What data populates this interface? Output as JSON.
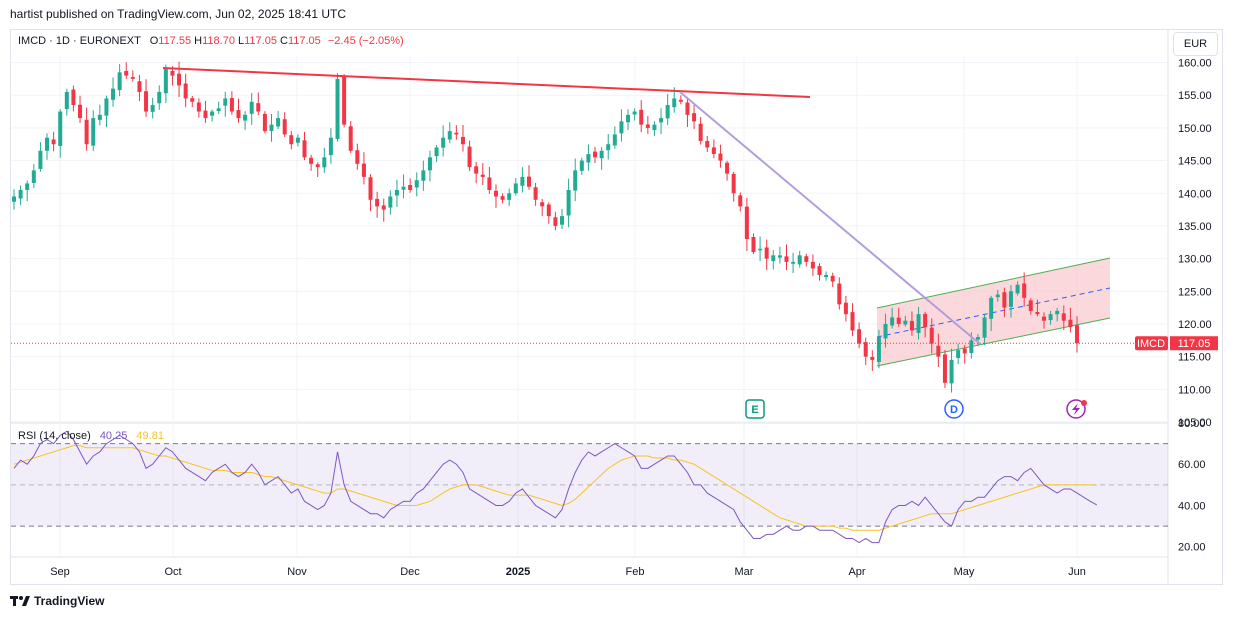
{
  "header": {
    "credit": "hartist published on TradingView.com, Jun 02, 2025 18:41 UTC",
    "currency_button": "EUR"
  },
  "legend": {
    "symbol": "IMCD · 1D · EURONEXT",
    "open_label": "O",
    "open": "117.55",
    "high_label": "H",
    "high": "118.70",
    "low_label": "L",
    "low": "117.05",
    "close_label": "C",
    "close": "117.05",
    "change": "−2.45 (−2.05%)"
  },
  "rsi_legend": {
    "name": "RSI (14, close)",
    "rsi_value": "40.25",
    "ma_value": "49.81"
  },
  "footer": {
    "brand": "TradingView"
  },
  "colors": {
    "up": "#22ab94",
    "down": "#f23645",
    "rsi": "#7e57c2",
    "rsi_ma": "#f7c325",
    "resistance": "#f23645",
    "trendline": "#b39ddb",
    "channel_fill": "#f8c8cc",
    "channel_line": "#4caf50",
    "channel_mid": "#2962ff",
    "grid": "#f0f3fa"
  },
  "chart_data": [
    {
      "type": "candlestick",
      "symbol": "IMCD",
      "x_ticks": [
        "Sep",
        "Oct",
        "Nov",
        "Dec",
        "2025",
        "Feb",
        "Mar",
        "Apr",
        "May",
        "Jun"
      ],
      "y_ticks": [
        "105.00",
        "110.00",
        "115.00",
        "120.00",
        "125.00",
        "130.00",
        "135.00",
        "140.00",
        "145.00",
        "150.00",
        "155.00",
        "160.00"
      ],
      "ylim": [
        105,
        161
      ],
      "price_label": {
        "symbol": "IMCD",
        "value": "117.05"
      },
      "last_price": 117.05,
      "close_series": [
        139.5,
        140.5,
        141.5,
        143.5,
        146.5,
        148.5,
        147.5,
        152.5,
        155.5,
        153.5,
        151.5,
        147.5,
        151.5,
        152,
        154.5,
        156,
        158.5,
        158,
        157.5,
        155.5,
        152.5,
        153.5,
        155.5,
        159,
        158,
        156.5,
        154.5,
        154,
        152.5,
        151.5,
        152.5,
        153,
        154.5,
        152.5,
        151.5,
        152,
        154,
        152.5,
        149.5,
        150.5,
        151.5,
        149,
        147.5,
        148.5,
        145.5,
        144.5,
        144,
        145.5,
        148.5,
        157.5,
        150.5,
        146.5,
        144.5,
        142.5,
        139,
        138,
        137.5,
        139.5,
        140.5,
        141,
        140.5,
        142,
        143.5,
        145.5,
        147,
        148.5,
        149.5,
        149,
        147.5,
        144,
        143,
        142.5,
        140.5,
        139.5,
        139,
        140,
        141.5,
        142.5,
        141,
        139,
        138,
        136.5,
        135,
        136.5,
        140.5,
        143.5,
        145,
        146,
        145.5,
        146.5,
        147.5,
        149,
        151,
        152,
        152.5,
        150.5,
        150,
        150.5,
        151.5,
        153.5,
        154.5,
        154,
        152,
        151,
        148,
        147,
        146,
        145,
        143,
        140,
        138,
        133,
        131,
        131.5,
        130,
        130.5,
        130.5,
        129.5,
        129.5,
        130.5,
        129.5,
        128.5,
        127.5,
        127.5,
        126.5,
        123,
        121.5,
        119,
        117,
        115,
        114.5,
        118,
        120,
        121,
        120,
        120.5,
        119,
        121.5,
        119.5,
        117,
        115,
        111,
        114.5,
        116,
        115.5,
        117.5,
        118,
        121,
        124,
        124.5,
        122.5,
        125,
        126,
        124,
        122,
        121.5,
        120.5,
        121.5,
        122,
        120.5,
        119.5,
        117.05
      ],
      "annotations": [
        "E",
        "D"
      ]
    },
    {
      "type": "line",
      "name": "RSI (14, close)",
      "ylim": [
        15,
        80
      ],
      "y_ticks": [
        "20.00",
        "40.00",
        "60.00",
        "80.00"
      ],
      "levels": [
        70,
        50,
        30
      ],
      "series": [
        {
          "name": "RSI",
          "values": [
            58,
            62,
            60,
            64,
            70,
            72,
            70,
            74,
            76,
            72,
            66,
            60,
            64,
            66,
            70,
            72,
            74,
            72,
            70,
            66,
            58,
            60,
            64,
            68,
            66,
            62,
            58,
            56,
            54,
            52,
            56,
            58,
            60,
            56,
            54,
            56,
            60,
            56,
            50,
            52,
            54,
            50,
            46,
            48,
            42,
            40,
            38,
            40,
            46,
            66,
            50,
            42,
            40,
            38,
            36,
            36,
            34,
            38,
            40,
            42,
            42,
            46,
            48,
            52,
            56,
            60,
            62,
            60,
            56,
            48,
            46,
            44,
            42,
            40,
            40,
            42,
            46,
            48,
            44,
            40,
            38,
            36,
            34,
            38,
            48,
            56,
            62,
            66,
            64,
            66,
            68,
            70,
            68,
            66,
            64,
            58,
            58,
            60,
            62,
            64,
            64,
            60,
            56,
            50,
            50,
            46,
            44,
            42,
            40,
            38,
            32,
            28,
            24,
            24,
            26,
            26,
            28,
            30,
            28,
            28,
            30,
            30,
            28,
            28,
            28,
            26,
            24,
            24,
            22,
            24,
            22,
            22,
            32,
            38,
            40,
            40,
            42,
            40,
            44,
            40,
            36,
            32,
            30,
            38,
            42,
            42,
            44,
            44,
            48,
            52,
            54,
            54,
            52,
            56,
            58,
            54,
            50,
            48,
            46,
            48,
            48,
            46,
            44,
            42,
            40.25
          ]
        },
        {
          "name": "RSI MA",
          "values": [
            60,
            61,
            62,
            63,
            64,
            65,
            66,
            67,
            68,
            69,
            69,
            68,
            68,
            68,
            68,
            68,
            68,
            68,
            68,
            67,
            66,
            65,
            64,
            64,
            63,
            62,
            61,
            60,
            59,
            58,
            57,
            57,
            57,
            56,
            56,
            56,
            56,
            55,
            54,
            54,
            53,
            52,
            51,
            50,
            49,
            48,
            47,
            46,
            46,
            48,
            48,
            47,
            46,
            45,
            44,
            43,
            42,
            41,
            40,
            40,
            40,
            40,
            41,
            42,
            44,
            46,
            48,
            49,
            50,
            50,
            50,
            49,
            48,
            47,
            46,
            45,
            45,
            45,
            45,
            44,
            43,
            42,
            41,
            40,
            41,
            43,
            46,
            49,
            52,
            55,
            58,
            60,
            62,
            63,
            64,
            64,
            64,
            63,
            63,
            63,
            62,
            62,
            61,
            60,
            58,
            56,
            54,
            52,
            50,
            48,
            46,
            44,
            42,
            40,
            38,
            36,
            34,
            33,
            32,
            31,
            30,
            30,
            30,
            30,
            30,
            29,
            29,
            28,
            28,
            28,
            28,
            28,
            29,
            30,
            31,
            32,
            33,
            34,
            35,
            36,
            36,
            36,
            36,
            37,
            38,
            39,
            40,
            41,
            42,
            43,
            44,
            45,
            46,
            47,
            48,
            49,
            50,
            50,
            50,
            50,
            50,
            50,
            50,
            50,
            49.81
          ]
        }
      ]
    }
  ]
}
